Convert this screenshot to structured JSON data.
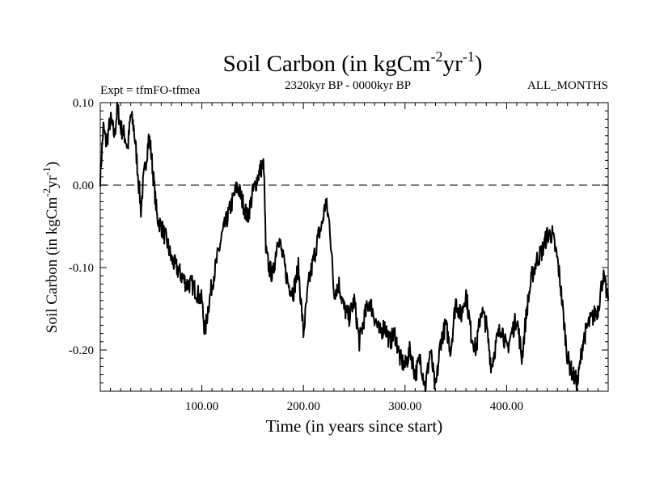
{
  "chart_data": {
    "type": "line",
    "title": {
      "base": "Soil Carbon (in kgCm",
      "sup1": "-2",
      "mid": "yr",
      "sup2": "-1",
      "end": ")"
    },
    "subtitle": "2320kyr BP - 0000kyr BP",
    "experiment": "Expt = tfmFO-tfmea",
    "months": "ALL_MONTHS",
    "xlabel": "Time (in years since start)",
    "ylabel": {
      "base": "Soil Carbon (in kgCm",
      "sup1": "-2",
      "mid": "yr",
      "sup2": "-1",
      "end": ")"
    },
    "xlim": [
      0,
      500
    ],
    "ylim": [
      -0.25,
      0.1
    ],
    "x_ticks": [
      100,
      200,
      300,
      400
    ],
    "x_tick_labels": [
      "100.00",
      "200.00",
      "300.00",
      "400.00"
    ],
    "y_ticks": [
      0.1,
      0.0,
      -0.1,
      -0.2
    ],
    "y_tick_labels": [
      "0.10",
      "0.00",
      "-0.10",
      "-0.20"
    ],
    "reference_line": 0.0,
    "series": [
      {
        "name": "Soil Carbon",
        "x": [
          0,
          3,
          6,
          10,
          14,
          17,
          20,
          24,
          27,
          30,
          33,
          36,
          38,
          40,
          42,
          45,
          48,
          50,
          53,
          56,
          60,
          63,
          66,
          70,
          75,
          80,
          85,
          90,
          95,
          100,
          103,
          106,
          110,
          115,
          120,
          125,
          130,
          135,
          140,
          145,
          150,
          155,
          158,
          161,
          163,
          166,
          170,
          175,
          180,
          185,
          190,
          195,
          200,
          205,
          210,
          215,
          218,
          222,
          226,
          230,
          235,
          240,
          245,
          250,
          255,
          260,
          265,
          270,
          275,
          280,
          285,
          290,
          295,
          300,
          305,
          310,
          315,
          320,
          325,
          330,
          335,
          340,
          345,
          350,
          355,
          360,
          365,
          370,
          375,
          380,
          385,
          390,
          395,
          400,
          405,
          410,
          415,
          420,
          425,
          430,
          435,
          440,
          445,
          450,
          453,
          456,
          460,
          465,
          470,
          475,
          480,
          485,
          490,
          495,
          500
        ],
        "values": [
          0.01,
          0.07,
          0.05,
          0.08,
          0.06,
          0.095,
          0.07,
          0.06,
          0.045,
          0.085,
          0.07,
          0.03,
          0.0,
          -0.03,
          0.0,
          0.03,
          0.06,
          0.04,
          0.0,
          -0.04,
          -0.05,
          -0.06,
          -0.07,
          -0.09,
          -0.1,
          -0.11,
          -0.12,
          -0.12,
          -0.13,
          -0.14,
          -0.18,
          -0.15,
          -0.12,
          -0.09,
          -0.06,
          -0.04,
          -0.02,
          0.0,
          -0.02,
          -0.04,
          -0.01,
          0.01,
          0.02,
          0.025,
          -0.08,
          -0.1,
          -0.11,
          -0.06,
          -0.09,
          -0.12,
          -0.13,
          -0.1,
          -0.18,
          -0.12,
          -0.09,
          -0.06,
          -0.05,
          -0.02,
          -0.05,
          -0.13,
          -0.12,
          -0.15,
          -0.16,
          -0.14,
          -0.19,
          -0.16,
          -0.14,
          -0.16,
          -0.18,
          -0.17,
          -0.19,
          -0.18,
          -0.21,
          -0.22,
          -0.2,
          -0.23,
          -0.21,
          -0.245,
          -0.2,
          -0.25,
          -0.19,
          -0.17,
          -0.2,
          -0.14,
          -0.16,
          -0.13,
          -0.18,
          -0.2,
          -0.15,
          -0.17,
          -0.22,
          -0.19,
          -0.17,
          -0.2,
          -0.18,
          -0.16,
          -0.21,
          -0.15,
          -0.11,
          -0.09,
          -0.08,
          -0.06,
          -0.06,
          -0.09,
          -0.12,
          -0.16,
          -0.21,
          -0.23,
          -0.24,
          -0.19,
          -0.17,
          -0.16,
          -0.15,
          -0.11,
          -0.14
        ]
      }
    ]
  }
}
